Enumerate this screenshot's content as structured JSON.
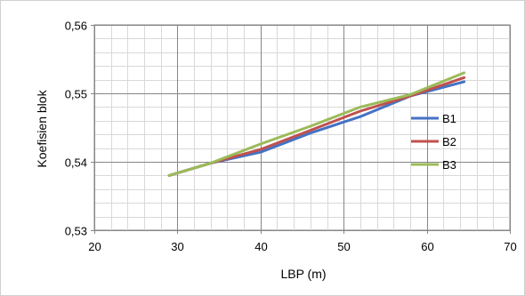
{
  "chart_data": {
    "type": "line",
    "title": "",
    "xlabel": "LBP (m)",
    "ylabel": "Koefisien blok",
    "xlim": [
      20,
      70
    ],
    "ylim": [
      0.53,
      0.56
    ],
    "x_ticks": [
      20,
      30,
      40,
      50,
      60,
      70
    ],
    "y_ticks": [
      0.53,
      0.54,
      0.55,
      0.56
    ],
    "x_tick_labels": [
      "20",
      "30",
      "40",
      "50",
      "60",
      "70"
    ],
    "y_tick_labels": [
      "0,53",
      "0,54",
      "0,55",
      "0,56"
    ],
    "x_minor_step": 2,
    "y_minor_step": 0.002,
    "grid": true,
    "legend_position": "right",
    "series": [
      {
        "name": "B1",
        "color": "#4472C4",
        "points": [
          [
            29,
            0.538
          ],
          [
            34,
            0.5398
          ],
          [
            40,
            0.5414
          ],
          [
            46,
            0.5442
          ],
          [
            52,
            0.5466
          ],
          [
            58,
            0.5496
          ],
          [
            64.5,
            0.5517
          ]
        ]
      },
      {
        "name": "B2",
        "color": "#C0504D",
        "points": [
          [
            29,
            0.538
          ],
          [
            34,
            0.5398
          ],
          [
            40,
            0.5418
          ],
          [
            46,
            0.5446
          ],
          [
            52,
            0.5474
          ],
          [
            58,
            0.5496
          ],
          [
            64.5,
            0.5523
          ]
        ]
      },
      {
        "name": "B3",
        "color": "#9BBB59",
        "points": [
          [
            29,
            0.538
          ],
          [
            34,
            0.5398
          ],
          [
            40,
            0.5426
          ],
          [
            46,
            0.5452
          ],
          [
            52,
            0.548
          ],
          [
            58,
            0.5498
          ],
          [
            64.5,
            0.553
          ]
        ]
      }
    ]
  }
}
